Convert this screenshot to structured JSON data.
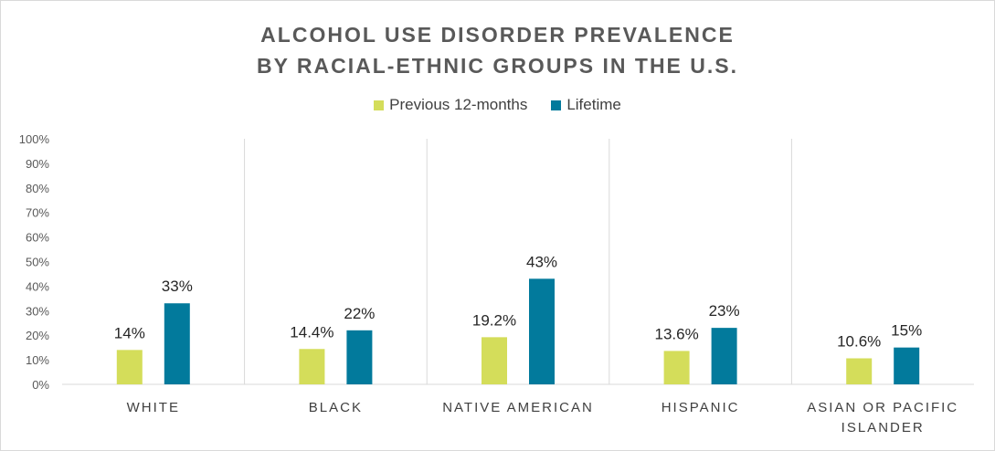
{
  "chart_data": {
    "type": "bar",
    "title_line1": "ALCOHOL USE DISORDER PREVALENCE",
    "title_line2": "BY RACIAL-ETHNIC GROUPS IN THE U.S.",
    "categories": [
      [
        "WHITE"
      ],
      [
        "BLACK"
      ],
      [
        "NATIVE AMERICAN"
      ],
      [
        "HISPANIC"
      ],
      [
        "ASIAN OR PACIFIC",
        "ISLANDER"
      ]
    ],
    "series": [
      {
        "name": "Previous 12-months",
        "color": "#d4dd5a",
        "values": [
          14,
          14.4,
          19.2,
          13.6,
          10.6
        ],
        "labels": [
          "14%",
          "14.4%",
          "19.2%",
          "13.6%",
          "10.6%"
        ]
      },
      {
        "name": "Lifetime",
        "color": "#027a9c",
        "values": [
          33,
          22,
          43,
          23,
          15
        ],
        "labels": [
          "33%",
          "22%",
          "43%",
          "23%",
          "15%"
        ]
      }
    ],
    "ylim": [
      0,
      100
    ],
    "yticks": [
      "0%",
      "10%",
      "20%",
      "30%",
      "40%",
      "50%",
      "60%",
      "70%",
      "80%",
      "90%",
      "100%"
    ],
    "grid": "vertical category separators",
    "legend_position": "top-center"
  }
}
